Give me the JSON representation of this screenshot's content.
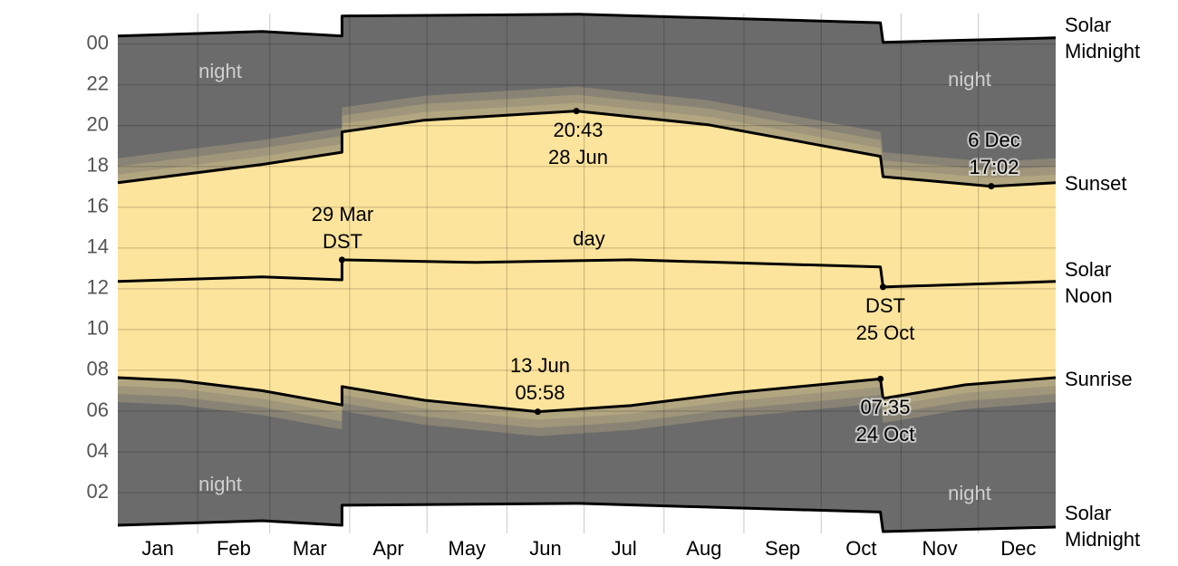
{
  "chart_data": {
    "type": "daylight",
    "categories": [
      "Jan",
      "Feb",
      "Mar",
      "Apr",
      "May",
      "Jun",
      "Jul",
      "Aug",
      "Sep",
      "Oct",
      "Nov",
      "Dec"
    ],
    "xlim": [
      1,
      365
    ],
    "ylim": [
      0,
      25.5
    ],
    "yticks": [
      {
        "value": 24,
        "label": "00"
      },
      22,
      20,
      18,
      16,
      14,
      12,
      10,
      {
        "value": 8,
        "label": "08"
      },
      {
        "value": 6,
        "label": "06"
      },
      {
        "value": 4,
        "label": "04"
      },
      {
        "value": 2,
        "label": "02"
      }
    ],
    "grid": true,
    "series": [
      {
        "name": "Solar Midnight",
        "color": "#000000",
        "x": [
          1,
          57,
          88,
          88,
          180,
          297,
          298,
          365
        ],
        "values": [
          24.4,
          24.62,
          24.4,
          25.38,
          25.47,
          25.05,
          24.09,
          24.31
        ]
      },
      {
        "name": "Sunset",
        "color": "#000000",
        "x": [
          1,
          57,
          88,
          88,
          120,
          179,
          230,
          297,
          298,
          340,
          365
        ],
        "values": [
          17.2,
          18.1,
          18.7,
          19.7,
          20.27,
          20.72,
          20.05,
          18.5,
          17.5,
          17.03,
          17.2
        ]
      },
      {
        "name": "Solar Noon",
        "color": "#000000",
        "x": [
          1,
          57,
          88,
          88,
          140,
          200,
          297,
          298,
          365
        ],
        "values": [
          12.36,
          12.58,
          12.44,
          13.42,
          13.29,
          13.42,
          13.07,
          12.09,
          12.36
        ]
      },
      {
        "name": "Sunrise",
        "color": "#000000",
        "x": [
          1,
          25,
          57,
          88,
          88,
          120,
          164,
          200,
          240,
          297,
          298,
          330,
          365
        ],
        "values": [
          7.64,
          7.5,
          7.0,
          6.3,
          7.2,
          6.53,
          5.97,
          6.27,
          6.9,
          7.58,
          6.62,
          7.29,
          7.64
        ]
      },
      {
        "name": "Solar Midnight",
        "color": "#000000",
        "x": [
          1,
          57,
          88,
          88,
          180,
          297,
          298,
          365
        ],
        "values": [
          0.4,
          0.62,
          0.4,
          1.38,
          1.47,
          1.05,
          0.09,
          0.31
        ]
      }
    ],
    "night_color": "#6b6b6b",
    "day_color": "#fde49c",
    "annotations": [
      {
        "text": [
          "night"
        ]
      },
      {
        "text": [
          "night"
        ]
      },
      {
        "text": [
          "night"
        ]
      },
      {
        "text": [
          "night"
        ]
      },
      {
        "text": [
          "day"
        ]
      },
      {
        "text": [
          "29 Mar",
          "DST"
        ]
      },
      {
        "text": [
          "20:43",
          "28 Jun"
        ]
      },
      {
        "text": [
          "13 Jun",
          "05:58"
        ]
      },
      {
        "text": [
          "DST",
          "25 Oct"
        ]
      },
      {
        "text": [
          "07:35",
          "24 Oct"
        ]
      },
      {
        "text": [
          "6 Dec",
          "17:02"
        ]
      }
    ]
  }
}
